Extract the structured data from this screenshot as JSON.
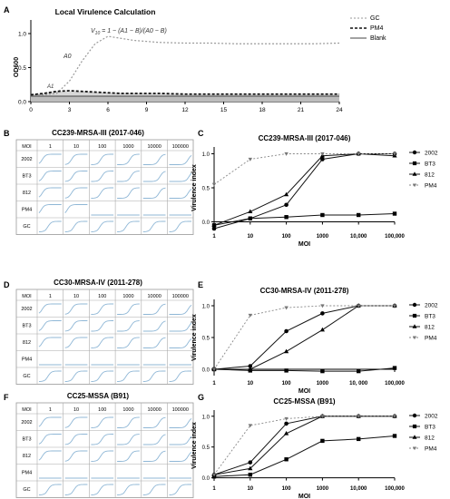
{
  "panel_letters": [
    "A",
    "B",
    "C",
    "D",
    "E",
    "F",
    "G"
  ],
  "panel_a": {
    "title": "Local  Virulence Calculation",
    "ylabel": "OD600",
    "formula_lhs": "V",
    "formula_sub": "10",
    "formula_rhs": " = 1 − (A1 − B)/(A0 − B)",
    "label_a0": "A0",
    "label_a1": "A1",
    "label_b": "B",
    "legend": [
      "GC",
      "PM4",
      "Blank"
    ],
    "yticks": [
      "0.0",
      "0.5",
      "1.0"
    ],
    "xticks": [
      "0",
      "3",
      "6",
      "9",
      "12",
      "15",
      "18",
      "21",
      "24"
    ]
  },
  "grids": [
    {
      "title": "CC239-MRSA-III (2017-046)",
      "header": [
        "MOI",
        "1",
        "10",
        "100",
        "1000",
        "10000",
        "100000"
      ],
      "rows": [
        "2002",
        "BT3",
        "812",
        "PM4",
        "GC"
      ],
      "style": "c239"
    },
    {
      "title": "CC30-MRSA-IV (2011-278)",
      "header": [
        "MOI",
        "1",
        "10",
        "100",
        "1000",
        "10000",
        "100000"
      ],
      "rows": [
        "2002",
        "BT3",
        "812",
        "PM4",
        "GC"
      ],
      "style": "c30"
    },
    {
      "title": "CC25-MSSA (B91)",
      "header": [
        "MOI",
        "1",
        "10",
        "100",
        "1000",
        "10000",
        "100000"
      ],
      "rows": [
        "2002",
        "BT3",
        "812",
        "PM4",
        "GC"
      ],
      "style": "c25"
    }
  ],
  "chart_data": [
    {
      "type": "line",
      "title": "Local  Virulence Calculation",
      "xlabel": "",
      "ylabel": "OD600",
      "x": [
        0,
        1,
        2,
        3,
        4,
        5,
        6,
        7,
        8,
        10,
        12,
        14,
        16,
        18,
        20,
        22,
        24
      ],
      "xlim": [
        0,
        24
      ],
      "ylim": [
        0,
        1.2
      ],
      "series": [
        {
          "name": "GC",
          "values": [
            0.1,
            0.1,
            0.12,
            0.3,
            0.6,
            0.85,
            0.96,
            0.93,
            0.9,
            0.87,
            0.86,
            0.86,
            0.85,
            0.85,
            0.85,
            0.85,
            0.86
          ]
        },
        {
          "name": "PM4",
          "values": [
            0.1,
            0.12,
            0.15,
            0.16,
            0.15,
            0.14,
            0.13,
            0.12,
            0.12,
            0.12,
            0.11,
            0.11,
            0.11,
            0.11,
            0.11,
            0.11,
            0.11
          ]
        },
        {
          "name": "Blank",
          "values": [
            0.08,
            0.08,
            0.08,
            0.08,
            0.08,
            0.08,
            0.08,
            0.08,
            0.08,
            0.08,
            0.08,
            0.08,
            0.08,
            0.08,
            0.08,
            0.08,
            0.08
          ]
        }
      ]
    },
    {
      "type": "line",
      "title": "CC239-MRSA-III (2017-046)",
      "xlabel": "MOI",
      "ylabel": "Virulence index",
      "x": [
        1,
        10,
        100,
        1000,
        10000,
        100000
      ],
      "xticklabels": [
        "1",
        "10",
        "100",
        "1000",
        "10,000",
        "100,000"
      ],
      "log_x": true,
      "ylim": [
        -0.1,
        1.1
      ],
      "yticks": [
        "0.0",
        "0.5",
        "1.0"
      ],
      "legend_position": "right",
      "series": [
        {
          "name": "2002",
          "marker": "circle",
          "values": [
            -0.1,
            0.05,
            0.25,
            0.92,
            1.0,
            1.0
          ]
        },
        {
          "name": "BT3",
          "marker": "square",
          "values": [
            -0.05,
            0.05,
            0.07,
            0.1,
            0.1,
            0.12
          ]
        },
        {
          "name": "812",
          "marker": "triangle",
          "values": [
            -0.05,
            0.15,
            0.4,
            0.97,
            1.0,
            0.97
          ]
        },
        {
          "name": "PM4",
          "marker": "down-triangle",
          "values": [
            0.55,
            0.92,
            1.0,
            1.0,
            1.0,
            1.0
          ]
        }
      ]
    },
    {
      "type": "line",
      "title": "CC30-MRSA-IV (2011-278)",
      "xlabel": "MOI",
      "ylabel": "Virulence index",
      "x": [
        1,
        10,
        100,
        1000,
        10000,
        100000
      ],
      "xticklabels": [
        "1",
        "10",
        "100",
        "1000",
        "10, 000",
        "100,000"
      ],
      "log_x": true,
      "ylim": [
        -0.1,
        1.1
      ],
      "yticks": [
        "0.0",
        "0.5",
        "1.0"
      ],
      "legend_position": "right",
      "series": [
        {
          "name": "2002",
          "marker": "circle",
          "values": [
            0.0,
            0.05,
            0.6,
            0.88,
            1.0,
            1.0
          ]
        },
        {
          "name": "BT3",
          "marker": "square",
          "values": [
            0.0,
            -0.02,
            -0.02,
            -0.03,
            -0.03,
            0.02
          ]
        },
        {
          "name": "812",
          "marker": "triangle",
          "values": [
            0.0,
            0.0,
            0.28,
            0.62,
            1.0,
            1.0
          ]
        },
        {
          "name": "PM4",
          "marker": "down-triangle",
          "values": [
            0.0,
            0.85,
            0.97,
            1.0,
            1.0,
            1.0
          ]
        }
      ]
    },
    {
      "type": "line",
      "title": "CC25-MSSA (B91)",
      "xlabel": "MOI",
      "ylabel": "Virulence index",
      "x": [
        1,
        10,
        100,
        1000,
        10000,
        100000
      ],
      "xticklabels": [
        "1",
        "10",
        "100",
        "1000",
        "10,000",
        "100,000"
      ],
      "log_x": true,
      "ylim": [
        -0.05,
        1.1
      ],
      "yticks": [
        "0.0",
        "0.5",
        "1.0"
      ],
      "legend_position": "right",
      "series": [
        {
          "name": "2002",
          "marker": "circle",
          "values": [
            0.05,
            0.25,
            0.88,
            1.0,
            1.0,
            1.0
          ]
        },
        {
          "name": "BT3",
          "marker": "square",
          "values": [
            0.02,
            0.05,
            0.3,
            0.6,
            0.63,
            0.68
          ]
        },
        {
          "name": "812",
          "marker": "triangle",
          "values": [
            0.05,
            0.15,
            0.72,
            1.0,
            1.0,
            1.0
          ]
        },
        {
          "name": "PM4",
          "marker": "down-triangle",
          "values": [
            0.05,
            0.85,
            0.96,
            1.0,
            1.0,
            1.0
          ]
        }
      ]
    }
  ]
}
